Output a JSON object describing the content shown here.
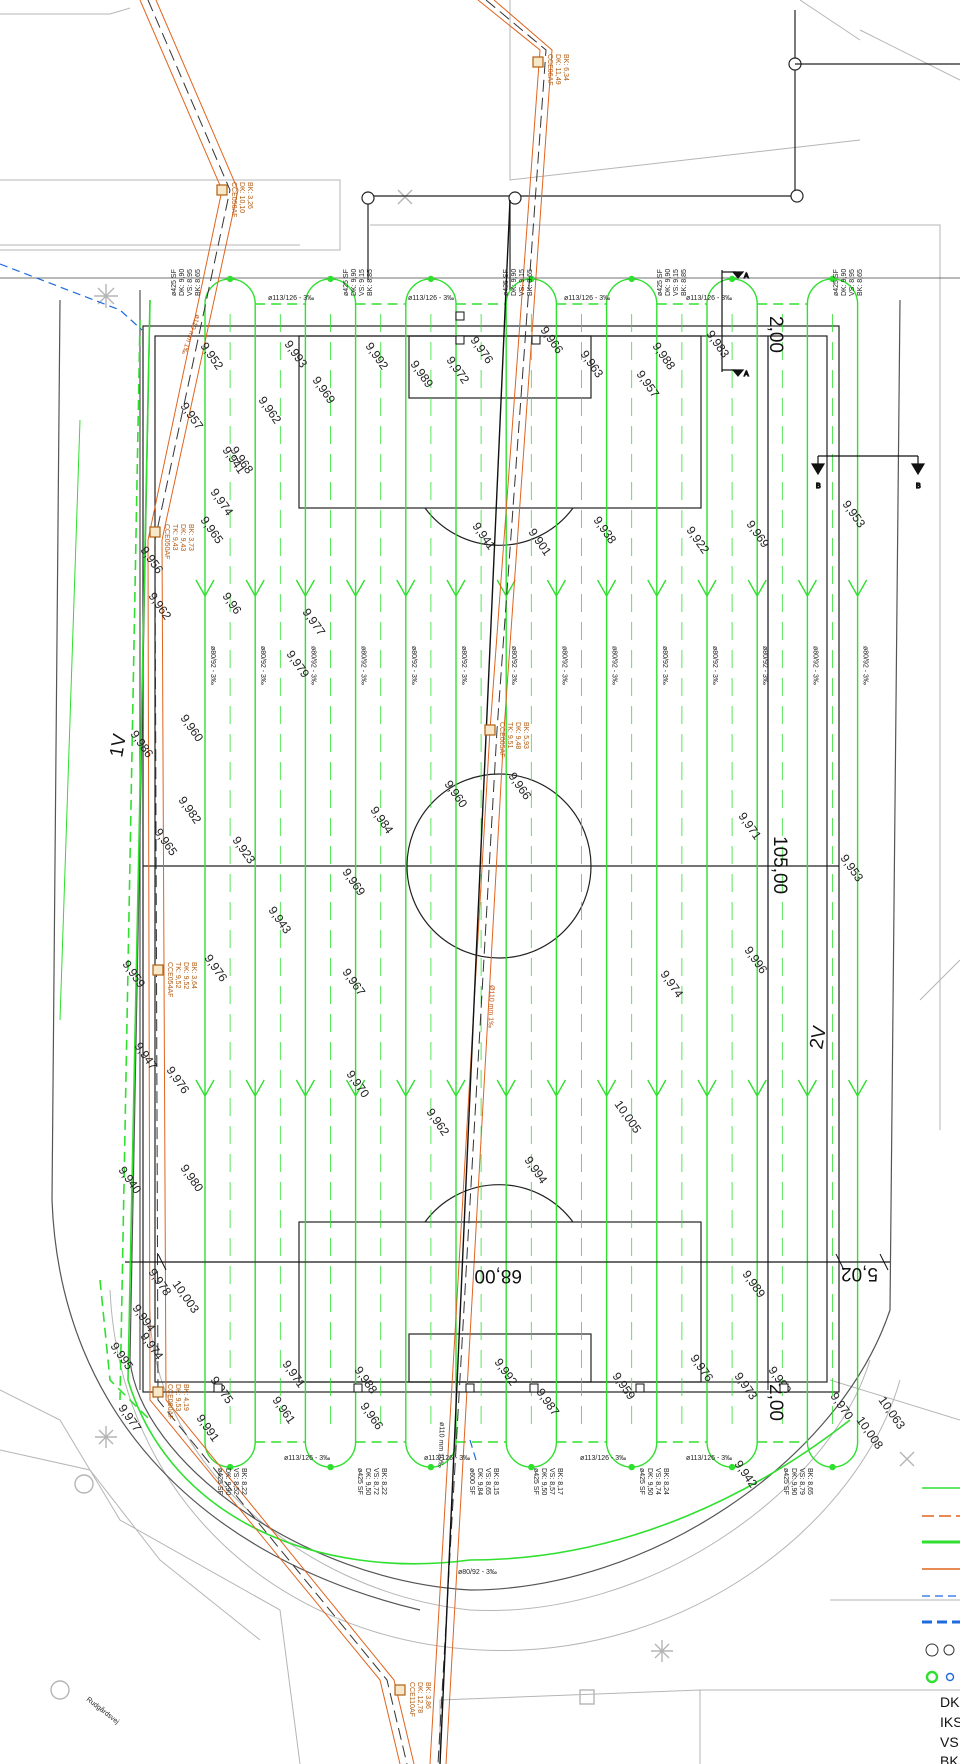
{
  "drawing": {
    "dimensions": {
      "length": "105,00",
      "width": "68,00",
      "margin_top": "2,00",
      "margin_bottom": "2,00",
      "margin_right": "5,02"
    },
    "side_labels": [
      "1V",
      "2V"
    ],
    "section_marks": [
      "A",
      "B"
    ],
    "street_name": "Rudgårdsvej",
    "collector_pipe_label": "ø113/126 - 3‰",
    "drain_label": "ø80/92 - 3‰",
    "south_drain_label": "ø80/92 - 3‰",
    "main_pipe_labels": [
      "ø110 mm 1‰",
      "Ø110 mm 1‰",
      "ø110 mm 10‰"
    ],
    "surface_spots": [
      "9,952",
      "9,993",
      "9,992",
      "9,989",
      "9,972",
      "9,976",
      "9,966",
      "9,963",
      "9,957",
      "9,988",
      "9,983",
      "9,962",
      "9,969",
      "9,957",
      "9,941",
      "9,968",
      "9,974",
      "9,965",
      "9,941",
      "9,901",
      "9,938",
      "9,922",
      "9,969",
      "9,953",
      "9,956",
      "9,962",
      "9,96",
      "9,977",
      "9,979",
      "9,960",
      "9,986",
      "9,982",
      "9,965",
      "9,960",
      "9,966",
      "9,984",
      "9,971",
      "9,969",
      "9,923",
      "9,943",
      "9,967",
      "9,976",
      "9,953",
      "9,959",
      "9,974",
      "9,996",
      "9,947",
      "9,976",
      "9,970",
      "9,962",
      "9,980",
      "9,994",
      "10,005",
      "9,989",
      "9,940",
      "9,978",
      "10,003",
      "9,994",
      "9,974",
      "9,995",
      "9,977",
      "9,975",
      "9,971",
      "9,988",
      "9,991",
      "9,961",
      "9,966",
      "9,992",
      "9,987",
      "9,959",
      "9,976",
      "9,973",
      "9,990",
      "9,970",
      "10,008",
      "10,063",
      "9,942"
    ],
    "manholes": [
      {
        "id": "CCE06AF",
        "lines": [
          "DK: 11,49",
          "BK: 6,34"
        ]
      },
      {
        "id": "CCE050AF",
        "lines": [
          "DK: 10,10",
          "BK: 3,26"
        ]
      },
      {
        "id": "CCE050AF",
        "lines": [
          "TK: 9,43",
          "DK: 9,43",
          "BK: 3,73"
        ]
      },
      {
        "id": "CCE005AF",
        "lines": [
          "TK: 9,51",
          "DK: 9,48",
          "BK: 5,93"
        ]
      },
      {
        "id": "CCE054AF",
        "lines": [
          "TK: 9,52",
          "DK: 9,52",
          "BK: 3,64"
        ]
      },
      {
        "id": "CCE080AF",
        "lines": [
          "DK: 9,53",
          "BK: 4,19"
        ]
      },
      {
        "id": "CCE110AF",
        "lines": [
          "DK: 12,78",
          "BK: 3,86"
        ]
      }
    ],
    "wells_north": [
      {
        "lines": [
          "ø425 SF",
          "DK: 9,90",
          "VS: 8,95",
          "BK: 8,65"
        ]
      },
      {
        "lines": [
          "ø425 SF",
          "DK: 9,90",
          "VS: 9,15",
          "BK: 8,85"
        ]
      },
      {
        "lines": [
          "ø425 SF",
          "DK: 9,90",
          "VS: 9,15",
          "BK: 8,65"
        ]
      },
      {
        "lines": [
          "ø425 SF",
          "DK: 9,90",
          "VS: 9,15",
          "BK: 8,85"
        ]
      },
      {
        "lines": [
          "ø425 SF",
          "DK: 9,90",
          "VS: 8,95",
          "BK: 8,65"
        ]
      }
    ],
    "wells_south": [
      {
        "lines": [
          "ø425 SF",
          "DK: 9,90",
          "VS: 8,52",
          "BK: 8,22"
        ]
      },
      {
        "lines": [
          "ø425 SF",
          "DK: 9,50",
          "VS: 8,72",
          "BK: 8,22"
        ]
      },
      {
        "lines": [
          "ø600 SF",
          "DK: 9,84",
          "VS: 8,65",
          "BK: 8,15"
        ]
      },
      {
        "lines": [
          "ø425 SF",
          "DK: 9,50",
          "VS: 8,57",
          "BK: 8,17"
        ]
      },
      {
        "lines": [
          "ø425 SF",
          "DK: 9,50",
          "VS: 8,74",
          "BK: 8,24"
        ]
      },
      {
        "lines": [
          "ø425 SF",
          "DK: 9,90",
          "VS: 8,79",
          "BK: 8,65"
        ]
      }
    ],
    "legend": {
      "abbreviations": [
        "DK",
        "IKS",
        "VS",
        "BK"
      ]
    },
    "colors": {
      "drain": "#2fe02f",
      "sewer": "#e0641e",
      "existing": "#aaaaaa",
      "water": "#1e6be0"
    }
  }
}
